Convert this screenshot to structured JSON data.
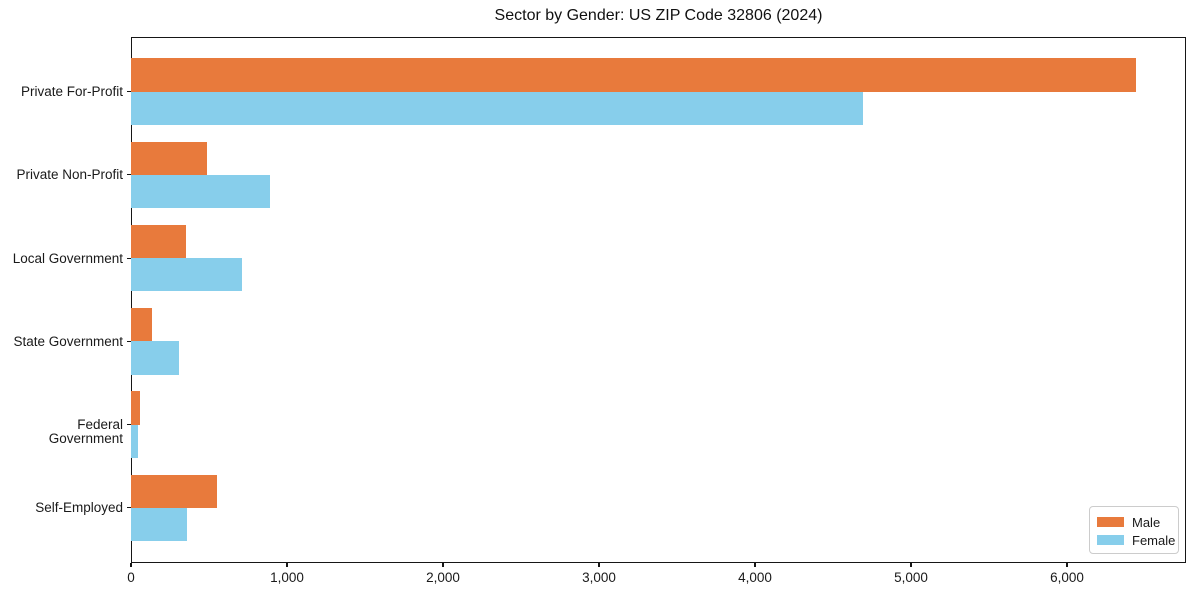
{
  "title": "Sector by Gender: US ZIP Code 32806 (2024)",
  "colors": {
    "male": "#e87a3c",
    "female": "#87ceeb",
    "spine": "#161616",
    "text": "#1a1a1a",
    "legend_border": "#cccccc",
    "background": "#ffffff"
  },
  "legend": {
    "position": "lower right",
    "items": [
      {
        "label": "Male",
        "color": "#e87a3c"
      },
      {
        "label": "Female",
        "color": "#87ceeb"
      }
    ]
  },
  "chart_data": {
    "type": "bar",
    "orientation": "horizontal",
    "title": "Sector by Gender: US ZIP Code 32806 (2024)",
    "categories": [
      "Private For-Profit",
      "Private Non-Profit",
      "Local Government",
      "State Government",
      "Federal Government",
      "Self-Employed"
    ],
    "series": [
      {
        "name": "Male",
        "color": "#e87a3c",
        "values": [
          6440,
          490,
          355,
          135,
          55,
          550
        ]
      },
      {
        "name": "Female",
        "color": "#87ceeb",
        "values": [
          4690,
          890,
          710,
          310,
          45,
          360
        ]
      }
    ],
    "xlabel": "",
    "ylabel": "",
    "xlim": [
      0,
      6763
    ],
    "xticks": [
      0,
      1000,
      2000,
      3000,
      4000,
      5000,
      6000
    ],
    "xtick_labels": [
      "0",
      "1,000",
      "2,000",
      "3,000",
      "4,000",
      "5,000",
      "6,000"
    ],
    "grid": false,
    "legend_position": "lower right"
  }
}
